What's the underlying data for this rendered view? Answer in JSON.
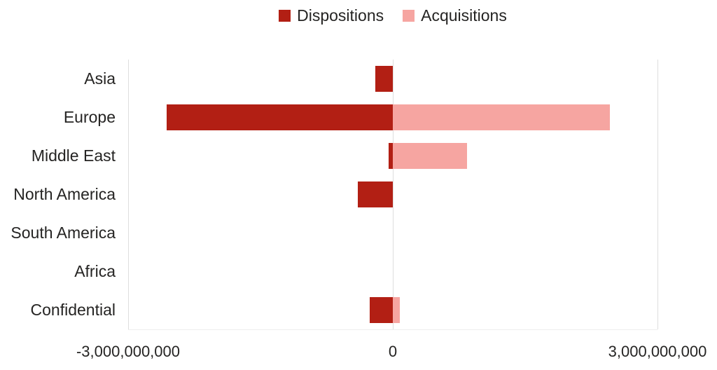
{
  "colors": {
    "dispositions": "#b21f14",
    "acquisitions": "#f6a5a1",
    "gridline": "#dedede",
    "axis_line": "#ededed",
    "text": "#252423",
    "background": "#ffffff"
  },
  "legend": {
    "items": [
      {
        "label": "Dispositions",
        "color": "#b21f14"
      },
      {
        "label": "Acquisitions",
        "color": "#f6a5a1"
      }
    ]
  },
  "chart_data": {
    "type": "bar",
    "orientation": "horizontal",
    "title": "",
    "xlabel": "",
    "ylabel": "",
    "categories": [
      "Asia",
      "Europe",
      "Middle East",
      "North America",
      "South America",
      "Africa",
      "Confidential"
    ],
    "series": [
      {
        "name": "Dispositions",
        "color": "#b21f14",
        "values": [
          -195000000,
          -2560000000,
          -45000000,
          -395000000,
          0,
          0,
          -265000000
        ]
      },
      {
        "name": "Acquisitions",
        "color": "#f6a5a1",
        "values": [
          0,
          2460000000,
          840000000,
          0,
          0,
          0,
          80000000
        ]
      }
    ],
    "xlim": [
      -3000000000,
      3000000000
    ],
    "x_tick_values": [
      -3000000000,
      0,
      3000000000
    ],
    "x_tick_labels": [
      "-3,000,000,000",
      "0",
      "3,000,000,000"
    ],
    "grid": "vertical",
    "legend_position": "top"
  }
}
